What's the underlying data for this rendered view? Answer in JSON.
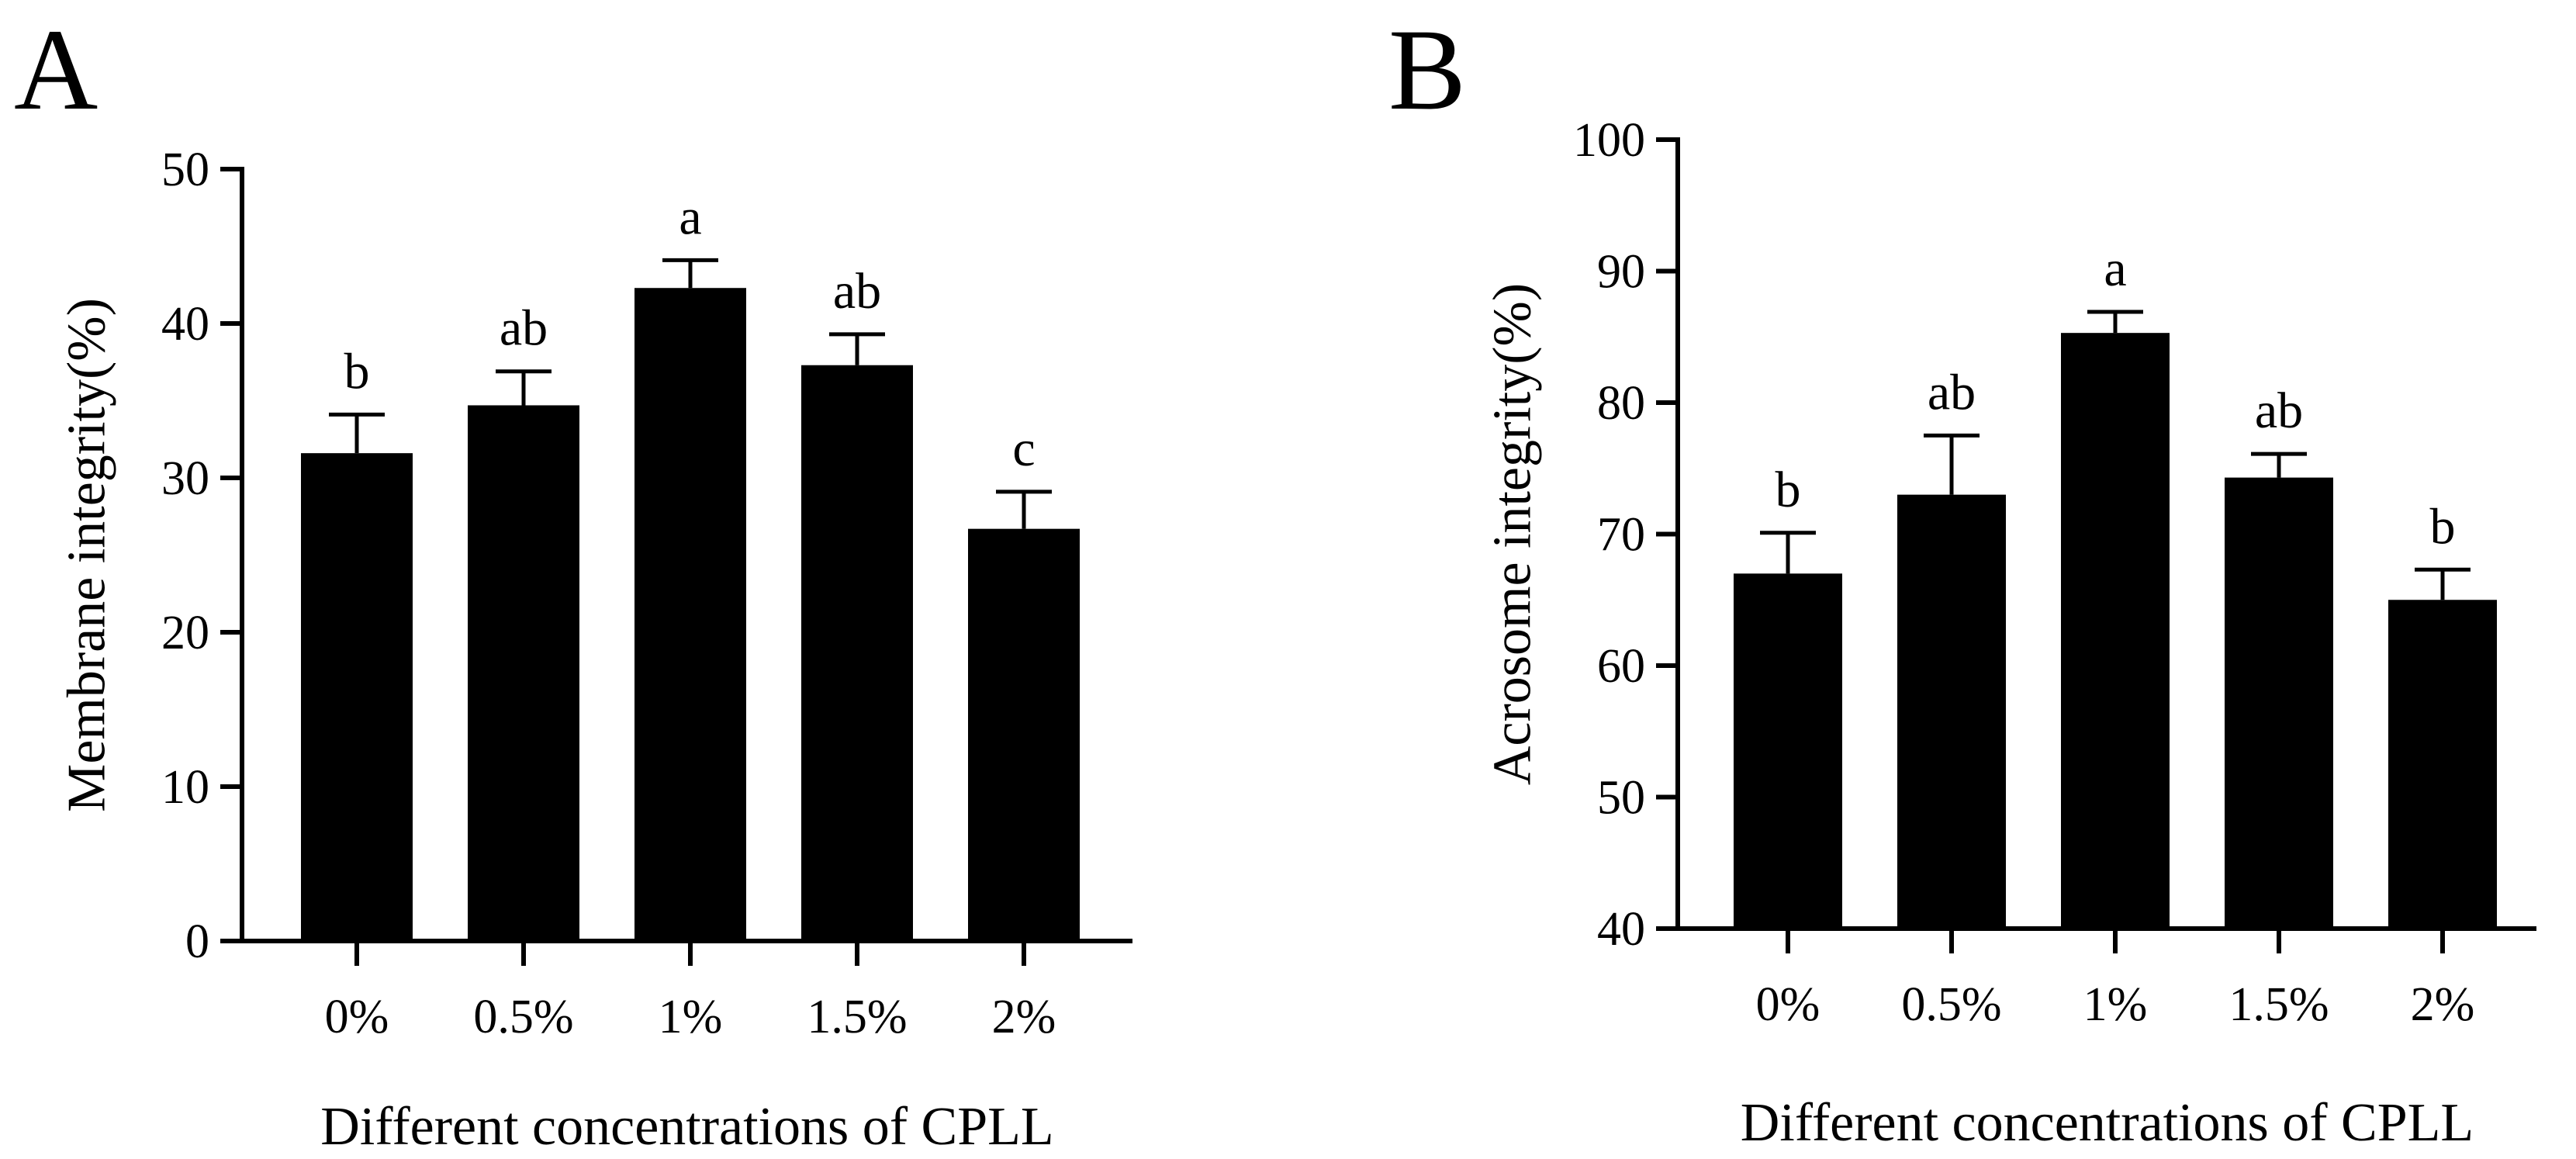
{
  "chart_data": [
    {
      "type": "bar",
      "panel": "A",
      "categories": [
        "0%",
        "0.5%",
        "1%",
        "1.5%",
        "2%"
      ],
      "values": [
        31.6,
        34.7,
        42.3,
        37.3,
        26.7
      ],
      "errors": [
        2.5,
        2.2,
        1.8,
        2.0,
        2.4
      ],
      "significance": [
        "b",
        "ab",
        "a",
        "ab",
        "c"
      ],
      "title": "",
      "xlabel": "Different concentrations of CPLL",
      "ylabel": "Membrane integrity(%)",
      "ylim": [
        0,
        50
      ],
      "yticks": [
        0,
        10,
        20,
        30,
        40,
        50
      ],
      "grid": false,
      "bar_color": "#000000"
    },
    {
      "type": "bar",
      "panel": "B",
      "categories": [
        "0%",
        "0.5%",
        "1%",
        "1.5%",
        "2%"
      ],
      "values": [
        67.0,
        73.0,
        85.3,
        74.3,
        65.0
      ],
      "errors": [
        3.1,
        4.5,
        1.6,
        1.8,
        2.3
      ],
      "significance": [
        "b",
        "ab",
        "a",
        "ab",
        "b"
      ],
      "title": "",
      "xlabel": "Different concentrations of CPLL",
      "ylabel": "Acrosome integrity(%)",
      "ylim": [
        40,
        100
      ],
      "yticks": [
        40,
        50,
        60,
        70,
        80,
        90,
        100
      ],
      "grid": false,
      "bar_color": "#000000"
    }
  ]
}
